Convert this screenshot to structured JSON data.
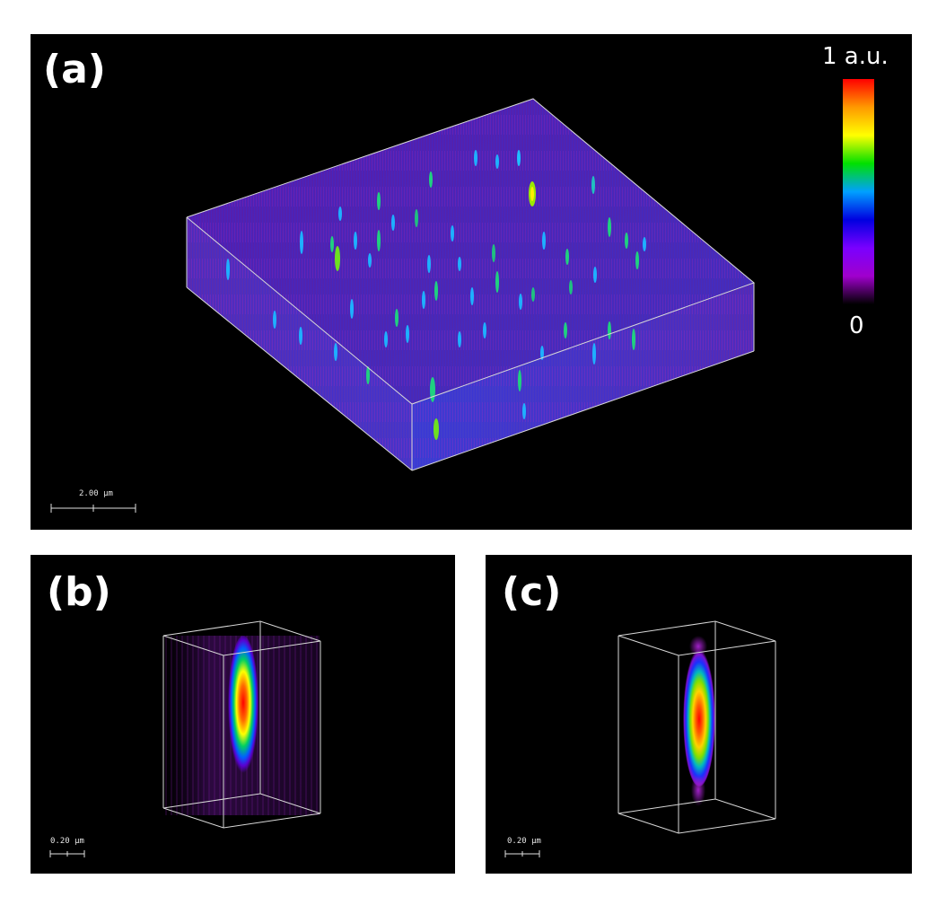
{
  "panels": {
    "a": {
      "label": "(a)",
      "scalebar": "2.00 µm",
      "colorbar": {
        "max_label": "1 a.u.",
        "min_label": "0",
        "colors": [
          "#ff0000",
          "#ff9900",
          "#ffff00",
          "#00e000",
          "#00a0ff",
          "#0000e0",
          "#7a00ff",
          "#a000cc",
          "#000000"
        ]
      }
    },
    "b": {
      "label": "(b)",
      "scalebar": "0.20 µm"
    },
    "c": {
      "label": "(c)",
      "scalebar": "0.20 µm"
    }
  }
}
